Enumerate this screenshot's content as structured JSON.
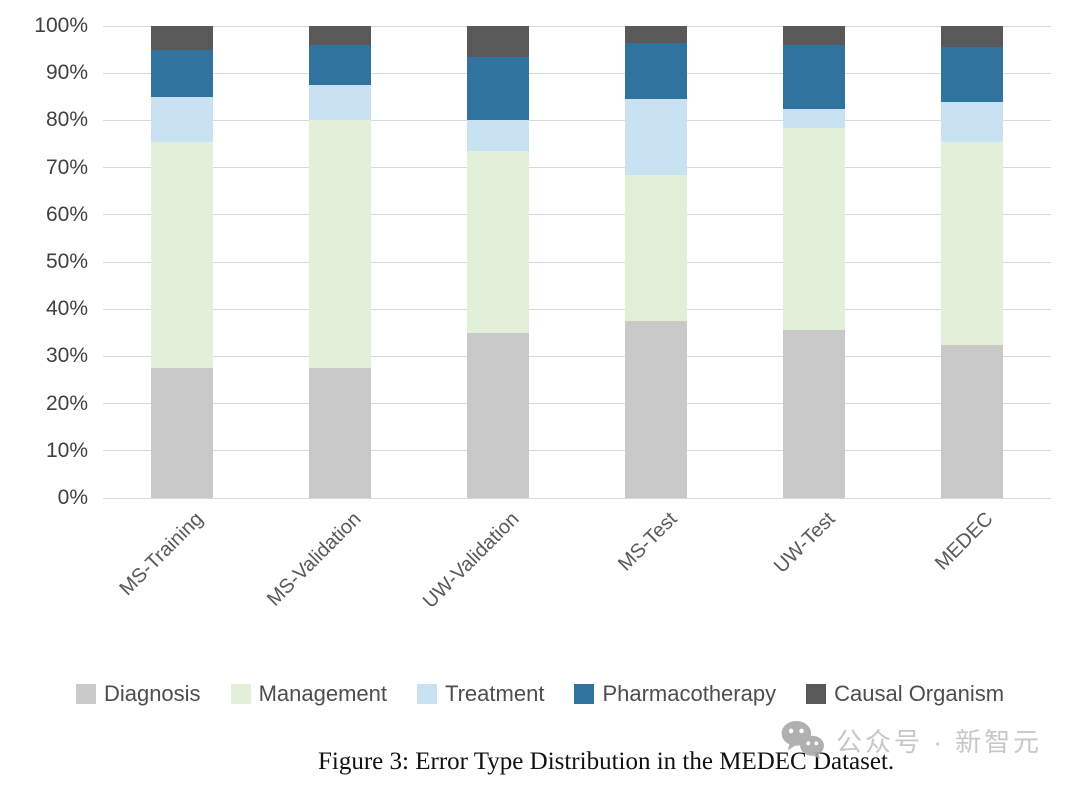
{
  "chart_data": {
    "type": "bar",
    "subtype": "stacked-percent",
    "title": "",
    "xlabel": "",
    "ylabel": "",
    "ylim": [
      0,
      100
    ],
    "grid": true,
    "legend_position": "bottom",
    "categories": [
      "MS-Training",
      "MS-Validation",
      "UW-Validation",
      "MS-Test",
      "UW-Test",
      "MEDEC"
    ],
    "series": [
      {
        "name": "Diagnosis",
        "color": "#c9c9c9",
        "values": [
          27.5,
          27.5,
          35.0,
          37.5,
          35.5,
          32.5
        ]
      },
      {
        "name": "Management",
        "color": "#e2f0da",
        "values": [
          48.0,
          52.5,
          38.5,
          31.0,
          43.0,
          43.0
        ]
      },
      {
        "name": "Treatment",
        "color": "#c9e2f2",
        "values": [
          9.5,
          7.5,
          6.5,
          16.0,
          4.0,
          8.5
        ]
      },
      {
        "name": "Pharmacotherapy",
        "color": "#2f739e",
        "values": [
          10.0,
          8.5,
          13.5,
          12.0,
          13.5,
          11.5
        ]
      },
      {
        "name": "Causal Organism",
        "color": "#595959",
        "values": [
          5.0,
          4.0,
          6.5,
          3.5,
          4.0,
          4.5
        ]
      }
    ],
    "y_ticks": [
      "100%",
      "90%",
      "80%",
      "70%",
      "60%",
      "50%",
      "40%",
      "30%",
      "20%",
      "10%",
      "0%"
    ],
    "gridline_color": "#d9d9d9",
    "axis_text_color": "#404040",
    "category_text_color": "#595959",
    "legend_text_color": "#4d4d4d"
  },
  "caption": {
    "text": "Figure 3: Error Type Distribution in the MEDEC Dataset."
  },
  "watermark": {
    "icon": "wechat-icon",
    "text": "公众号 · 新智元",
    "color": "#c2c1c1"
  }
}
